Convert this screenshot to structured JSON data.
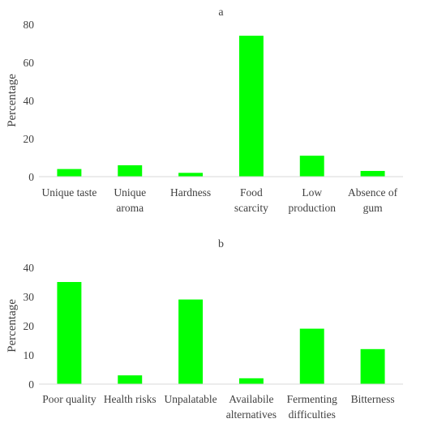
{
  "chart_data": [
    {
      "type": "bar",
      "title": "a",
      "ylabel": "Percentage",
      "xlabel": "",
      "ylim": [
        0,
        80
      ],
      "yticks": [
        0,
        20,
        40,
        60,
        80
      ],
      "grid": false,
      "bar_color": "#00ff00",
      "categories": [
        [
          "Unique taste"
        ],
        [
          "Unique",
          "aroma"
        ],
        [
          "Hardness"
        ],
        [
          "Food",
          "scarcity"
        ],
        [
          "Low",
          "production"
        ],
        [
          "Absence of",
          "gum"
        ]
      ],
      "values": [
        4,
        6,
        2,
        74,
        11,
        3
      ]
    },
    {
      "type": "bar",
      "title": "b",
      "ylabel": "Percentage",
      "xlabel": "",
      "ylim": [
        0,
        40
      ],
      "yticks": [
        0,
        10,
        20,
        30,
        40
      ],
      "grid": false,
      "bar_color": "#00ff00",
      "categories": [
        [
          "Poor quality"
        ],
        [
          "Health risks"
        ],
        [
          "Unpalatable"
        ],
        [
          "Availabile",
          "alternatives"
        ],
        [
          "Fermenting",
          "difficulties"
        ],
        [
          "Bitterness"
        ]
      ],
      "values": [
        35,
        3,
        29,
        2,
        19,
        12
      ]
    }
  ]
}
